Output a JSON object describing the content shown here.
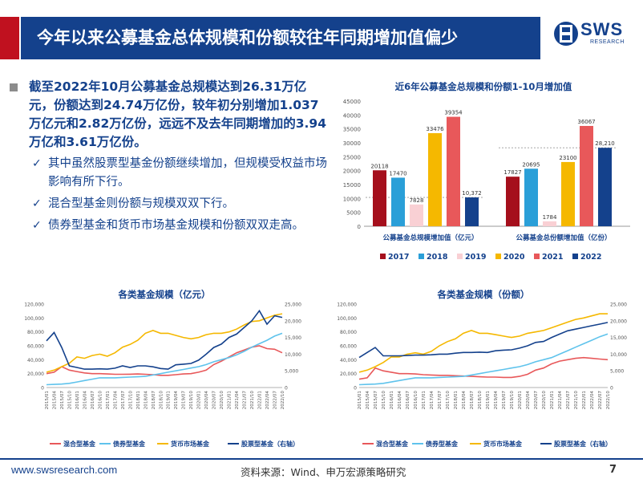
{
  "header": {
    "title": "今年以来公募基金总体规模和份额较往年同期增加值偏少",
    "logo_name": "SWS",
    "logo_sub": "RESEARCH"
  },
  "bullets": {
    "main": "截至2022年10月公募基金总规模达到26.31万亿元，份额达到24.74万亿份，较年初分别增加1.037万亿元和2.82万亿份，远远不及去年同期增加的3.94万亿和3.61万亿份。",
    "subs": [
      "其中虽然股票型基金份额继续增加，但规模受权益市场影响有所下行。",
      "混合型基金则份额与规模双双下行。",
      "债券型基金和货币市场基金规模和份额双双走高。"
    ]
  },
  "colors": {
    "y2017": "#a50f1c",
    "y2018": "#2a9fd8",
    "y2019": "#f9d0d4",
    "y2020": "#f5b800",
    "y2021": "#e8585a",
    "y2022": "#14418c",
    "mixed": "#e8585a",
    "bond": "#5fc3ec",
    "money": "#f5b800",
    "stock": "#14418c"
  },
  "chart_data": [
    {
      "type": "bar",
      "title": "近6年公募基金总规模和份额1-10月增加值",
      "categories": [
        "公募基金总规模增加值（亿元）",
        "公募基金总份额增加值（亿份）"
      ],
      "series": [
        {
          "name": "2017",
          "values": [
            20118,
            17827
          ]
        },
        {
          "name": "2018",
          "values": [
            17470,
            20695
          ]
        },
        {
          "name": "2019",
          "values": [
            7828,
            1784
          ]
        },
        {
          "name": "2020",
          "values": [
            33476,
            23100
          ]
        },
        {
          "name": "2021",
          "values": [
            39354,
            36067
          ]
        },
        {
          "name": "2022",
          "values": [
            10372,
            28210
          ]
        }
      ],
      "value_labels": [
        [
          "20118",
          "17470",
          "7828",
          "33476",
          "39354",
          "10,372"
        ],
        [
          "17827",
          "20695",
          "1784",
          "23100",
          "36067",
          "28,210"
        ]
      ],
      "ylim": [
        0,
        45000
      ],
      "yticks": [
        "0",
        "5000",
        "10000",
        "15000",
        "20000",
        "25000",
        "30000",
        "35000",
        "40000",
        "45000"
      ],
      "legend": "bottom"
    },
    {
      "type": "line",
      "title": "各类基金规模（亿元）",
      "xticks": [
        "2015/01",
        "2015/04",
        "2015/07",
        "2015/10",
        "2016/01",
        "2016/04",
        "2016/07",
        "2016/10",
        "2017/01",
        "2017/04",
        "2017/07",
        "2017/10",
        "2018/01",
        "2018/04",
        "2018/07",
        "2018/10",
        "2019/01",
        "2019/04",
        "2019/07",
        "2019/10",
        "2020/01",
        "2020/04",
        "2020/07",
        "2020/10",
        "2021/01",
        "2021/04",
        "2021/07",
        "2021/10",
        "2022/01",
        "2022/04",
        "2022/07",
        "2022/10"
      ],
      "ylim": [
        0,
        120000
      ],
      "yticks": [
        "0",
        "20,000",
        "40,000",
        "60,000",
        "80,000",
        "100,000",
        "120,000"
      ],
      "y2lim": [
        0,
        25000
      ],
      "y2ticks": [
        "0",
        "5,000",
        "10,000",
        "15,000",
        "20,000",
        "25,000"
      ],
      "series": [
        {
          "name": "混合型基金",
          "axis": "left",
          "values": [
            20000,
            22000,
            30000,
            25000,
            23000,
            21000,
            20000,
            20000,
            19500,
            19000,
            19000,
            19200,
            19500,
            19000,
            18500,
            17500,
            17500,
            18500,
            19500,
            20000,
            22000,
            25000,
            33000,
            38000,
            44000,
            50000,
            54000,
            58000,
            60000,
            56000,
            55000,
            50000
          ]
        },
        {
          "name": "债券型基金",
          "axis": "left",
          "values": [
            4000,
            4500,
            5000,
            6000,
            8000,
            10000,
            12000,
            14000,
            14000,
            14000,
            14500,
            15000,
            15500,
            16000,
            18000,
            20000,
            22000,
            24000,
            26000,
            28000,
            30000,
            33000,
            37000,
            40000,
            43000,
            47000,
            52000,
            58000,
            63000,
            68000,
            74000,
            78000
          ]
        },
        {
          "name": "货币市场基金",
          "axis": "left",
          "values": [
            22000,
            25000,
            30000,
            35000,
            44000,
            42000,
            46000,
            48000,
            45000,
            50000,
            58000,
            62000,
            68000,
            78000,
            82000,
            78000,
            78000,
            75000,
            72000,
            70000,
            72000,
            76000,
            78000,
            78000,
            80000,
            84000,
            90000,
            95000,
            96000,
            100000,
            104000,
            106000
          ]
        },
        {
          "name": "股票型基金（右轴）",
          "axis": "right",
          "values": [
            14000,
            16500,
            12000,
            6500,
            6000,
            5500,
            5500,
            5600,
            5500,
            5800,
            6500,
            6000,
            6500,
            6500,
            6200,
            5700,
            5500,
            6800,
            7000,
            7200,
            8200,
            10000,
            12000,
            13000,
            15000,
            16000,
            18000,
            20000,
            23000,
            19000,
            21500,
            21000
          ]
        }
      ],
      "legend": "bottom"
    },
    {
      "type": "line",
      "title": "各类基金规模（份额）",
      "xticks": [
        "2015/01",
        "2015/04",
        "2015/07",
        "2015/10",
        "2016/01",
        "2016/04",
        "2016/07",
        "2016/10",
        "2017/01",
        "2017/04",
        "2017/07",
        "2017/10",
        "2018/01",
        "2018/04",
        "2018/07",
        "2018/10",
        "2019/01",
        "2019/04",
        "2019/07",
        "2019/10",
        "2020/01",
        "2020/04",
        "2020/07",
        "2020/10",
        "2021/01",
        "2021/04",
        "2021/07",
        "2021/10",
        "2022/01",
        "2022/04",
        "2022/07",
        "2022/10"
      ],
      "ylim": [
        0,
        120000
      ],
      "yticks": [
        "0",
        "20,000",
        "40,000",
        "60,000",
        "80,000",
        "100,000",
        "120,000"
      ],
      "y2lim": [
        0,
        25000
      ],
      "y2ticks": [
        "0",
        "5,000",
        "10,000",
        "15,000",
        "20,000",
        "25,000"
      ],
      "series": [
        {
          "name": "混合型基金",
          "axis": "left",
          "values": [
            12000,
            14000,
            28000,
            24000,
            22000,
            20000,
            20000,
            19500,
            18500,
            18000,
            17500,
            17500,
            17000,
            16500,
            16000,
            15500,
            15000,
            15000,
            14500,
            14500,
            16000,
            19000,
            25000,
            28000,
            34000,
            38000,
            40000,
            42000,
            43000,
            42000,
            41000,
            40000
          ]
        },
        {
          "name": "债券型基金",
          "axis": "left",
          "values": [
            4000,
            4500,
            5000,
            6000,
            8000,
            10000,
            12000,
            14000,
            14000,
            14000,
            14500,
            15000,
            15500,
            16000,
            18000,
            20000,
            22000,
            24000,
            26000,
            28000,
            30000,
            33000,
            37000,
            40000,
            43000,
            48000,
            53000,
            58000,
            63000,
            68000,
            73000,
            77000
          ]
        },
        {
          "name": "货币市场基金",
          "axis": "left",
          "values": [
            22000,
            25000,
            30000,
            36000,
            44000,
            44000,
            48000,
            50000,
            48000,
            52000,
            60000,
            66000,
            70000,
            78000,
            82000,
            78000,
            78000,
            76000,
            74000,
            72000,
            74000,
            78000,
            80000,
            82000,
            86000,
            90000,
            94000,
            98000,
            100000,
            103000,
            106000,
            106000
          ]
        },
        {
          "name": "股票型基金（右轴）",
          "axis": "right",
          "values": [
            9000,
            10500,
            12000,
            9500,
            9500,
            9500,
            9600,
            9700,
            9700,
            9800,
            10000,
            10000,
            10300,
            10500,
            10500,
            10600,
            10500,
            11000,
            11200,
            11300,
            11800,
            12500,
            13500,
            13800,
            15000,
            16000,
            17000,
            17500,
            18000,
            18500,
            19000,
            19500
          ]
        }
      ],
      "legend": "bottom"
    }
  ],
  "footer": {
    "url": "www.swsresearch.com",
    "source": "资料来源：Wind、申万宏源策略研究",
    "page": "7"
  }
}
